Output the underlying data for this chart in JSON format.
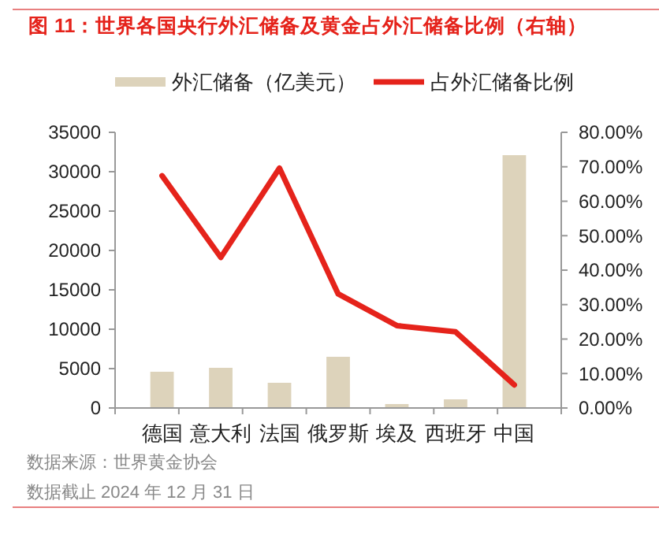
{
  "chart_data": {
    "type": "bar",
    "title": "图 11：世界各国央行外汇储备及黄金占外汇储备比例（右轴）",
    "categories": [
      "德国",
      "意大利",
      "法国",
      "俄罗斯",
      "埃及",
      "西班牙",
      "中国"
    ],
    "series": [
      {
        "name": "外汇储备（亿美元）",
        "color": "#ddd3bb",
        "values": [
          4600,
          5100,
          3200,
          6500,
          500,
          1100,
          32100
        ]
      },
      {
        "name": "占外汇储备比例",
        "type": "line",
        "axis": "y2",
        "color": "#e5231b",
        "values": [
          67.4,
          43.7,
          69.6,
          33.1,
          23.9,
          22.1,
          6.7
        ]
      }
    ],
    "ylim": [
      0,
      35000
    ],
    "yticks": [
      0,
      5000,
      10000,
      15000,
      20000,
      25000,
      30000,
      35000
    ],
    "y2lim": [
      0,
      80
    ],
    "y2ticks": [
      {
        "value": 0,
        "label": "0.00%"
      },
      {
        "value": 10,
        "label": "10.00%"
      },
      {
        "value": 20,
        "label": "20.00%"
      },
      {
        "value": 30,
        "label": "30.00%"
      },
      {
        "value": 40,
        "label": "40.00%"
      },
      {
        "value": 50,
        "label": "50.00%"
      },
      {
        "value": 60,
        "label": "60.00%"
      },
      {
        "value": 70,
        "label": "70.00%"
      },
      {
        "value": 80,
        "label": "80.00%"
      }
    ],
    "legend": "top",
    "grid": false,
    "marker": "none",
    "line_style": "solid",
    "annotations": [
      "数据来源：世界黄金协会",
      "数据截止 2024 年 12 月 31 日"
    ]
  }
}
